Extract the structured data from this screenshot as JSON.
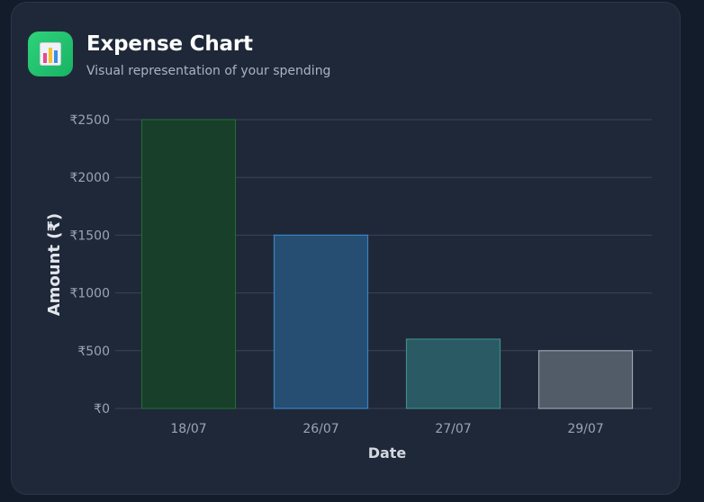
{
  "header": {
    "title": "Expense Chart",
    "subtitle": "Visual representation of your spending",
    "icon": "bar-chart-icon"
  },
  "colors": {
    "card_bg": "#1f2838",
    "page_bg": "#131c2b",
    "grid": "#3a4455",
    "tick": "#9aa4b2",
    "axis_title": "#e2e6ec"
  },
  "chart_data": {
    "type": "bar",
    "title": "",
    "xlabel": "Date",
    "ylabel": "Amount (₹)",
    "ylim": [
      0,
      2500
    ],
    "yticks": [
      0,
      500,
      1000,
      1500,
      2000,
      2500
    ],
    "ytick_labels": [
      "₹0",
      "₹500",
      "₹1000",
      "₹1500",
      "₹2000",
      "₹2500"
    ],
    "grid": true,
    "categories": [
      "18/07",
      "26/07",
      "27/07",
      "29/07"
    ],
    "values": [
      2500,
      1500,
      600,
      500
    ],
    "bar_colors": [
      {
        "fill": "#173f29",
        "stroke": "#1f6b34"
      },
      {
        "fill": "#264e73",
        "stroke": "#3b82c4"
      },
      {
        "fill": "#2a5a63",
        "stroke": "#3d8a89"
      },
      {
        "fill": "#525b68",
        "stroke": "#9aa2ad"
      }
    ]
  }
}
